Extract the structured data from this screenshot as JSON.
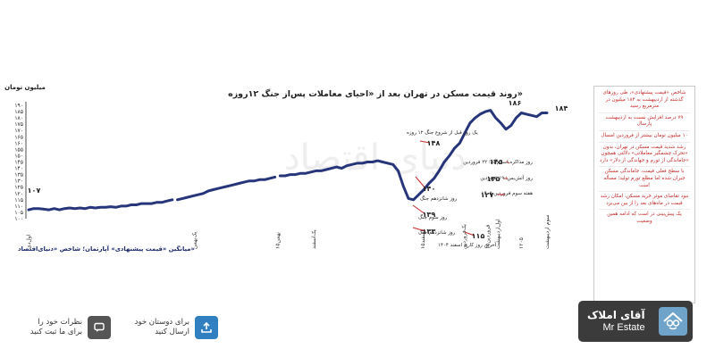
{
  "chart_data": {
    "type": "line",
    "title": "روند قیمت مسکن در تهران بعد از «احیای معاملات پس‌از جنگ ۱۲روزه»",
    "ylabel": "میلیون تومان",
    "source": "میانگین «قیمت پیشنهادی» آپارتمان؛ شاخص «دنیای‌اقتصاد»",
    "watermark": "دنیای اقتصاد",
    "y_ticks": [
      "۱۹۰",
      "۱۸۵",
      "۱۸۰",
      "۱۷۵",
      "۱۷۰",
      "۱۶۵",
      "۱۶۰",
      "۱۵۵",
      "۱۵۰",
      "۱۴۵",
      "۱۴۰",
      "۱۳۵",
      "۱۳۰",
      "۱۲۵",
      "۱۲۰",
      "۱۱۵",
      "۱۱۰",
      "۱۰۵",
      "۱۰۰"
    ],
    "ylim": [
      100,
      190
    ],
    "x_ticks": [
      "اول‌دی",
      "یک‌بهمن",
      "۱۵بهمن",
      "یک‌اسفند",
      "۱۵اسفند",
      "یک‌فروردین",
      "۱۵فروردین",
      "اول‌اردیبهشت",
      "۱۲۰۵",
      "سوم اردیبهشت"
    ],
    "series": [
      {
        "values": [
          107,
          108,
          108,
          107.5,
          107,
          108,
          107,
          108,
          108.5,
          108,
          108.5,
          108,
          109,
          108.5,
          109,
          109,
          109.5,
          109,
          110,
          110,
          111,
          111,
          112,
          112,
          112,
          113,
          113,
          114,
          115,
          115,
          116,
          117,
          118,
          119,
          120,
          122,
          123,
          124,
          125,
          126,
          127,
          128,
          129,
          130,
          130,
          131,
          131,
          132,
          133,
          134,
          134,
          135,
          135,
          136,
          136,
          137,
          138,
          138,
          139,
          140,
          141,
          140,
          142,
          143,
          144,
          144,
          145,
          145,
          146,
          145,
          144,
          143,
          138,
          126,
          116,
          115,
          119,
          123,
          128,
          132,
          138,
          145,
          150,
          156,
          160,
          168,
          176,
          180,
          183,
          185,
          186,
          180,
          176,
          171,
          174,
          180,
          184,
          183,
          182,
          181,
          184,
          184
        ]
      }
    ],
    "gaps_after_index": [
      28,
      48
    ],
    "callouts": [
      {
        "label": "یک روز قبل از شروع جنگ ۱۲ روزه",
        "value": "۱۴۸"
      },
      {
        "label": "روز شانزدهم جنگ",
        "value": "۱۴۰"
      },
      {
        "label": "روز سوم جنگ",
        "value": "۱۳۹"
      },
      {
        "label": "روز شانزدهم جنگ",
        "value": "۱۳۳"
      },
      {
        "label": "آخرین روز کاری اسفند ۱۴۰۴",
        "value": "۱۱۵"
      },
      {
        "label": "روز مذاکره اسلام‌آباد؛ ۲۲ فروردین",
        "value": "۱۴۵"
      },
      {
        "label": "روز آتش‌بس؛ ۱۹ فروردین",
        "value": "۱۳۵"
      },
      {
        "label": "هفته سوم فروردین ۱۴۰۵",
        "value": "۱۲۷"
      },
      {
        "label": "",
        "value": "۱۸۶"
      },
      {
        "label": "",
        "value": "۱۸۴"
      },
      {
        "label": "",
        "value": "۱۰۷"
      }
    ],
    "colors": {
      "line": "#27357a",
      "callout": "#c62828",
      "text": "#222222"
    }
  },
  "notes": [
    "شاخص «قیمت پیشنهادی»، طی روزهای گذشته از اردیبهشت به ۱۸۴ میلیون در مترمربع رسید",
    "۷۹ درصد افزایش نسبت به اردیبهشت پارسال",
    "۱۰ میلیون تومان بیشتر از فروردین امسال",
    "رشد شدید قیمت مسکن در تهران، بدون «تحرک چشمگیر معاملاتی» دلالتی همچون «جاماندگی از تورم و جهاندگی از دلار» دارد",
    "با سطح فعلی قیمت، جاماندگی مسکن جبران شده اما مطلع تورم تولید؛ مسأله است",
    "نبود تقاضای موثر خرید مسکن، امکان رشد قیمت در ماه‌های بعد را از بین می‌برد",
    "یک پیش‌بینی در است که ادامه همین وضعیت"
  ],
  "actions": {
    "share": {
      "line1": "برای دوستان خود",
      "line2": "ارسال کنید",
      "icon": "share-icon",
      "color": "#2f7fc1"
    },
    "comment": {
      "line1": "نظرات خود را",
      "line2": "برای ما ثبت کنید",
      "icon": "comment-icon",
      "color": "#555555"
    }
  },
  "brand": {
    "fa": "آقای املاک",
    "en": "Mr Estate"
  }
}
